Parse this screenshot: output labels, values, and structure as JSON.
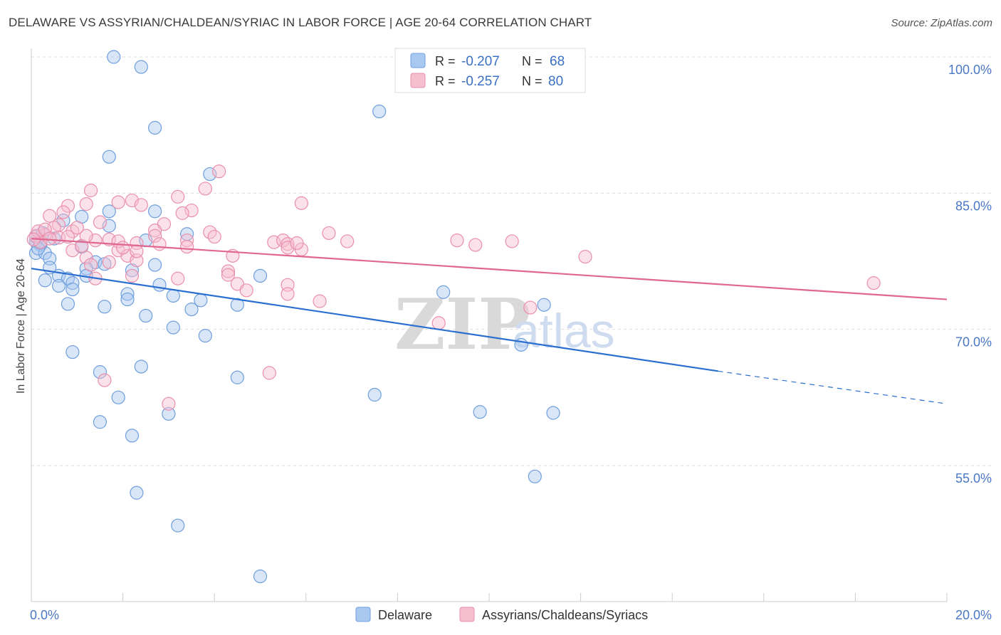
{
  "title": "DELAWARE VS ASSYRIAN/CHALDEAN/SYRIAC IN LABOR FORCE | AGE 20-64 CORRELATION CHART",
  "source": "Source: ZipAtlas.com",
  "watermark": {
    "zip": "ZIP",
    "atlas": "atlas"
  },
  "colors": {
    "blue_fill": "#a9c8f0",
    "blue_stroke": "#6f9fdc",
    "blue_line": "#2a6fd0",
    "pink_fill": "#f6bfd0",
    "pink_stroke": "#ea8fac",
    "pink_line": "#e0678f",
    "grid": "#dddddd",
    "axis": "#cccccc"
  },
  "legend": {
    "rows": [
      {
        "r_label": "R =",
        "r_value": "-0.207",
        "n_label": "N =",
        "n_value": "68"
      },
      {
        "r_label": "R =",
        "r_value": "-0.257",
        "n_label": "N =",
        "n_value": "80"
      }
    ]
  },
  "chart_data": {
    "type": "scatter",
    "title": "DELAWARE VS ASSYRIAN/CHALDEAN/SYRIAC IN LABOR FORCE | AGE 20-64 CORRELATION CHART",
    "xlabel": "",
    "ylabel": "In Labor Force | Age 20-64",
    "xlim": [
      0,
      20
    ],
    "ylim": [
      42,
      105
    ],
    "x_tick_labels": [
      {
        "value": 0,
        "label": "0.0%"
      },
      {
        "value": 20,
        "label": "20.0%"
      }
    ],
    "y_ticks": [
      {
        "value": 100,
        "label": "100.0%"
      },
      {
        "value": 85,
        "label": "85.0%"
      },
      {
        "value": 70,
        "label": "70.0%"
      },
      {
        "value": 55,
        "label": "55.0%"
      }
    ],
    "x_minor_ticks": [
      2,
      4,
      6,
      8,
      10,
      12,
      14,
      16,
      18,
      20
    ],
    "series": [
      {
        "name": "Delaware",
        "color": "blue",
        "trend": {
          "x0": 0,
          "y0": 76.7,
          "x1": 15,
          "y1": 65.4,
          "dash_x1": 20,
          "dash_y1": 61.8
        },
        "points": [
          [
            1.8,
            100
          ],
          [
            2.4,
            98.9
          ],
          [
            2.7,
            92.2
          ],
          [
            7.6,
            94
          ],
          [
            1.7,
            89
          ],
          [
            3.9,
            87.1
          ],
          [
            1.7,
            83
          ],
          [
            2.7,
            83
          ],
          [
            1.1,
            82.4
          ],
          [
            0.7,
            82
          ],
          [
            1.7,
            81.4
          ],
          [
            3.4,
            80.5
          ],
          [
            0.5,
            80
          ],
          [
            2.5,
            79.8
          ],
          [
            0.1,
            79.7
          ],
          [
            0.2,
            79.3
          ],
          [
            1.1,
            79.1
          ],
          [
            0.1,
            78.4
          ],
          [
            0.3,
            78.4
          ],
          [
            0.4,
            77.8
          ],
          [
            1.4,
            77.4
          ],
          [
            1.6,
            77.2
          ],
          [
            2.7,
            77.1
          ],
          [
            0.4,
            76.8
          ],
          [
            1.2,
            76.7
          ],
          [
            2.2,
            76.5
          ],
          [
            0.6,
            75.9
          ],
          [
            1.2,
            75.9
          ],
          [
            5,
            75.9
          ],
          [
            0.8,
            75.6
          ],
          [
            0.3,
            75.4
          ],
          [
            0.9,
            75.1
          ],
          [
            2.8,
            74.9
          ],
          [
            0.6,
            74.8
          ],
          [
            0.9,
            74.4
          ],
          [
            2.1,
            73.9
          ],
          [
            3.1,
            73.7
          ],
          [
            9,
            74.1
          ],
          [
            2.1,
            73.3
          ],
          [
            3.7,
            73.2
          ],
          [
            0.8,
            72.8
          ],
          [
            4.5,
            72.7
          ],
          [
            1.6,
            72.5
          ],
          [
            11.2,
            72.7
          ],
          [
            3.5,
            72.2
          ],
          [
            2.5,
            71.5
          ],
          [
            3.1,
            70.2
          ],
          [
            3.8,
            69.3
          ],
          [
            10.7,
            68.3
          ],
          [
            0.9,
            67.5
          ],
          [
            2.4,
            65.9
          ],
          [
            1.5,
            65.3
          ],
          [
            4.5,
            64.7
          ],
          [
            7.5,
            62.8
          ],
          [
            1.9,
            62.5
          ],
          [
            9.8,
            60.9
          ],
          [
            11.4,
            60.8
          ],
          [
            3.0,
            60.7
          ],
          [
            1.5,
            59.8
          ],
          [
            2.2,
            58.3
          ],
          [
            11,
            53.8
          ],
          [
            2.3,
            52
          ],
          [
            3.2,
            48.4
          ],
          [
            5,
            42.8
          ],
          [
            0.1,
            80.2
          ],
          [
            0.2,
            79.5
          ],
          [
            0.15,
            78.9
          ],
          [
            0.25,
            80.6
          ]
        ]
      },
      {
        "name": "Assyrians/Chaldeans/Syriacs",
        "color": "pink",
        "trend": {
          "x0": 0,
          "y0": 80,
          "x1": 20,
          "y1": 73.3
        },
        "points": [
          [
            4.1,
            87.4
          ],
          [
            1.3,
            85.3
          ],
          [
            3.8,
            85.5
          ],
          [
            3.2,
            84.6
          ],
          [
            2.2,
            84.2
          ],
          [
            1.9,
            84
          ],
          [
            2.4,
            83.7
          ],
          [
            1.2,
            83.8
          ],
          [
            0.8,
            83.6
          ],
          [
            5.9,
            83.9
          ],
          [
            3.5,
            83.1
          ],
          [
            3.3,
            82.8
          ],
          [
            0.4,
            82.5
          ],
          [
            1.5,
            81.8
          ],
          [
            2.9,
            81.6
          ],
          [
            0.6,
            81.5
          ],
          [
            0.5,
            81.2
          ],
          [
            0.9,
            80.8
          ],
          [
            2.7,
            80.9
          ],
          [
            3.9,
            80.7
          ],
          [
            0.3,
            80.4
          ],
          [
            0.6,
            80.1
          ],
          [
            0.8,
            80.2
          ],
          [
            2.7,
            80.3
          ],
          [
            6.5,
            80.6
          ],
          [
            1.7,
            79.9
          ],
          [
            1.4,
            79.8
          ],
          [
            3.4,
            79.8
          ],
          [
            5.3,
            79.6
          ],
          [
            5.5,
            79.8
          ],
          [
            5.6,
            79.4
          ],
          [
            6.9,
            79.7
          ],
          [
            9.3,
            79.8
          ],
          [
            10.5,
            79.7
          ],
          [
            9.7,
            79.3
          ],
          [
            2.3,
            79.5
          ],
          [
            2.8,
            79.4
          ],
          [
            5.6,
            79
          ],
          [
            5.9,
            78.8
          ],
          [
            0.9,
            78.7
          ],
          [
            1.9,
            78.7
          ],
          [
            2.1,
            78.1
          ],
          [
            4.4,
            78.1
          ],
          [
            1.2,
            77.9
          ],
          [
            2.3,
            77.6
          ],
          [
            1.7,
            77.4
          ],
          [
            1.3,
            77.1
          ],
          [
            12.1,
            78
          ],
          [
            4.3,
            76.4
          ],
          [
            4.3,
            76
          ],
          [
            2.2,
            75.9
          ],
          [
            3.2,
            75.6
          ],
          [
            1.4,
            75.6
          ],
          [
            4.5,
            75
          ],
          [
            4.7,
            74.3
          ],
          [
            5.6,
            74.9
          ],
          [
            5.6,
            73.9
          ],
          [
            6.3,
            73.1
          ],
          [
            10.9,
            72.4
          ],
          [
            8.9,
            70.7
          ],
          [
            18.4,
            75.1
          ],
          [
            5.2,
            65.2
          ],
          [
            1.6,
            64.4
          ],
          [
            3.0,
            61.8
          ],
          [
            0.1,
            80.3
          ],
          [
            0.2,
            79.6
          ],
          [
            0.15,
            80.8
          ],
          [
            0.05,
            79.9
          ],
          [
            0.3,
            81.0
          ],
          [
            0.4,
            80.0
          ],
          [
            1.1,
            79.2
          ],
          [
            1.9,
            79.7
          ],
          [
            2.3,
            78.6
          ],
          [
            3.4,
            79.1
          ],
          [
            5.8,
            79.5
          ],
          [
            0.7,
            82.9
          ],
          [
            1.2,
            80.3
          ],
          [
            2.0,
            79.0
          ],
          [
            4.0,
            80.2
          ],
          [
            1.0,
            81.2
          ]
        ]
      }
    ]
  }
}
